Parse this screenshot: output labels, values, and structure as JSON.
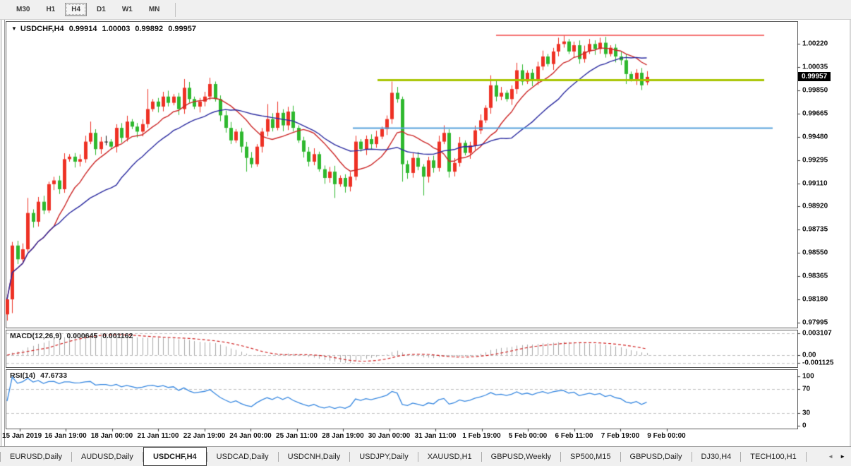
{
  "window": {
    "toolbar": {
      "timeframes": [
        "M30",
        "H1",
        "H4",
        "D1",
        "W1",
        "MN"
      ],
      "active": "H4"
    }
  },
  "chart": {
    "title": {
      "dropdown_icon": "▼",
      "symbol": "USDCHF,H4",
      "open": "0.99914",
      "high": "1.00003",
      "low": "0.99892",
      "close": "0.99957"
    },
    "current_price": "0.99957",
    "price_axis_labels": [
      "1.00220",
      "1.00035",
      "0.99850",
      "0.99665",
      "0.99480",
      "0.99295",
      "0.99110",
      "0.98920",
      "0.98735",
      "0.98550",
      "0.98365",
      "0.98180",
      "0.97995"
    ],
    "time_axis_labels": [
      "15 Jan 2019",
      "16 Jan 19:00",
      "18 Jan 00:00",
      "21 Jan 11:00",
      "22 Jan 19:00",
      "24 Jan 00:00",
      "25 Jan 11:00",
      "28 Jan 19:00",
      "30 Jan 00:00",
      "31 Jan 11:00",
      "1 Feb 19:00",
      "5 Feb 00:00",
      "6 Feb 11:00",
      "7 Feb 19:00",
      "9 Feb 00:00"
    ]
  },
  "macd_panel": {
    "label": "MACD(12,26,9)",
    "value_main": "0.000645",
    "value_signal": "0.001162",
    "axis_labels": [
      "0.003107",
      "0.00",
      "-0.001125"
    ]
  },
  "rsi_panel": {
    "label": "RSI(14)",
    "value": "47.6733",
    "axis_labels": [
      "100",
      "70",
      "30",
      "0"
    ]
  },
  "tab_bar": {
    "tabs": [
      "EURUSD,Daily",
      "AUDUSD,Daily",
      "USDCHF,H4",
      "USDCAD,Daily",
      "USDCNH,Daily",
      "USDJPY,Daily",
      "XAUUSD,H1",
      "GBPUSD,Weekly",
      "SP500,M15",
      "GBPUSD,Daily",
      "DJ30,H4",
      "TECH100,H1"
    ],
    "active": "USDCHF,H4",
    "scroll_left_icon": "◄",
    "scroll_right_icon": "►"
  },
  "colors": {
    "bull_candle": "#ee3124",
    "bear_candle": "#2eb82e",
    "doji": "#111111",
    "ma_fast": "#cc2727",
    "ma_slow": "#2b2ba0",
    "hline_resistance": "#f04545",
    "hline_pivot": "#a8c400",
    "hline_support": "#56a0dc",
    "macd_hist": "#a8a8a8",
    "macd_signal": "#d02020",
    "rsi_line": "#3687e0",
    "level_dash": "#c0c0c0",
    "price_tag_bg": "#000000"
  },
  "chart_data": {
    "type": "candlestick",
    "symbol": "USDCHF",
    "timeframe": "H4",
    "title": "USDCHF,H4 0.99914 1.00003 0.99892 0.99957",
    "ylim": [
      0.9795,
      1.0035
    ],
    "price_ticks": [
      1.0022,
      1.00035,
      0.9985,
      0.99665,
      0.9948,
      0.99295,
      0.9911,
      0.9892,
      0.98735,
      0.9855,
      0.98365,
      0.9818,
      0.97995
    ],
    "time_ticks": [
      "15 Jan 2019",
      "16 Jan 19:00",
      "18 Jan 00:00",
      "21 Jan 11:00",
      "22 Jan 19:00",
      "24 Jan 00:00",
      "25 Jan 11:00",
      "28 Jan 19:00",
      "30 Jan 00:00",
      "31 Jan 11:00",
      "1 Feb 19:00",
      "5 Feb 00:00",
      "6 Feb 11:00",
      "7 Feb 19:00",
      "9 Feb 00:00"
    ],
    "first_open": 0.9806,
    "closes": [
      0.9818,
      0.9861,
      0.985,
      0.9858,
      0.9887,
      0.988,
      0.9896,
      0.9889,
      0.991,
      0.9913,
      0.9906,
      0.993,
      0.9932,
      0.9928,
      0.993,
      0.9944,
      0.9951,
      0.9938,
      0.9944,
      0.9944,
      0.994,
      0.9955,
      0.9947,
      0.996,
      0.9956,
      0.9952,
      0.9958,
      0.997,
      0.9976,
      0.9972,
      0.998,
      0.9975,
      0.998,
      0.997,
      0.9987,
      0.9978,
      0.9972,
      0.9976,
      0.998,
      0.999,
      0.9978,
      0.9965,
      0.9955,
      0.9945,
      0.9952,
      0.994,
      0.9931,
      0.9926,
      0.994,
      0.9952,
      0.9962,
      0.9955,
      0.9967,
      0.9957,
      0.9968,
      0.9955,
      0.9945,
      0.9936,
      0.9928,
      0.9934,
      0.9922,
      0.9915,
      0.992,
      0.991,
      0.9915,
      0.9908,
      0.9916,
      0.9944,
      0.9938,
      0.9946,
      0.9942,
      0.9948,
      0.9954,
      0.9962,
      0.9983,
      0.9978,
      0.9926,
      0.9919,
      0.9931,
      0.9924,
      0.9916,
      0.9929,
      0.9923,
      0.9944,
      0.9951,
      0.992,
      0.9927,
      0.9943,
      0.9935,
      0.9941,
      0.9953,
      0.9961,
      0.9971,
      0.9989,
      0.998,
      0.9983,
      0.9978,
      0.9986,
      1.0001,
      0.9992,
      0.9999,
      0.9993,
      1.0004,
      1.0012,
      1.0006,
      1.0016,
      1.0022,
      1.0024,
      1.0016,
      1.0021,
      1.001,
      1.0016,
      1.0022,
      1.0018,
      1.0023,
      1.0014,
      1.0019,
      1.0012,
      1.0009,
      0.9998,
      0.9994,
      0.9999,
      0.9989,
      0.99957
    ],
    "doji_indices": [
      19
    ],
    "wick_overrides": {
      "0": {
        "l": 0.9801
      },
      "1": {
        "l": 0.9807
      },
      "4": {
        "h": 0.9899
      },
      "16": {
        "h": 0.996
      },
      "27": {
        "h": 0.9986
      },
      "34": {
        "h": 0.9994
      },
      "39": {
        "h": 0.9995
      },
      "46": {
        "l": 0.992
      },
      "50": {
        "h": 0.9974
      },
      "52": {
        "h": 0.9976
      },
      "63": {
        "l": 0.9899
      },
      "74": {
        "h": 0.9992
      },
      "76": {
        "l": 0.9912
      },
      "80": {
        "l": 0.9901
      },
      "84": {
        "h": 0.9957
      },
      "93": {
        "h": 0.9997
      },
      "98": {
        "h": 1.0007
      },
      "106": {
        "h": 1.0027
      },
      "112": {
        "h": 1.0026
      },
      "114": {
        "h": 1.0027
      },
      "119": {
        "l": 0.999
      }
    },
    "last_bar": {
      "open": 0.99914,
      "high": 1.00003,
      "low": 0.99892,
      "close": 0.99957
    },
    "hlines": {
      "resistance": 1.00289,
      "pivot": 0.99931,
      "support": 0.99548
    },
    "moving_averages": [
      {
        "period": 10
      },
      {
        "period": 22
      }
    ],
    "macd": {
      "params": [
        12,
        26,
        9
      ],
      "main_last": 0.000645,
      "signal_last": 0.001162,
      "axis": [
        0.003107,
        0.0,
        -0.001125
      ]
    },
    "rsi": {
      "period": 14,
      "last": 47.6733,
      "levels": [
        70,
        30
      ],
      "axis": [
        100,
        70,
        30,
        0
      ]
    }
  }
}
